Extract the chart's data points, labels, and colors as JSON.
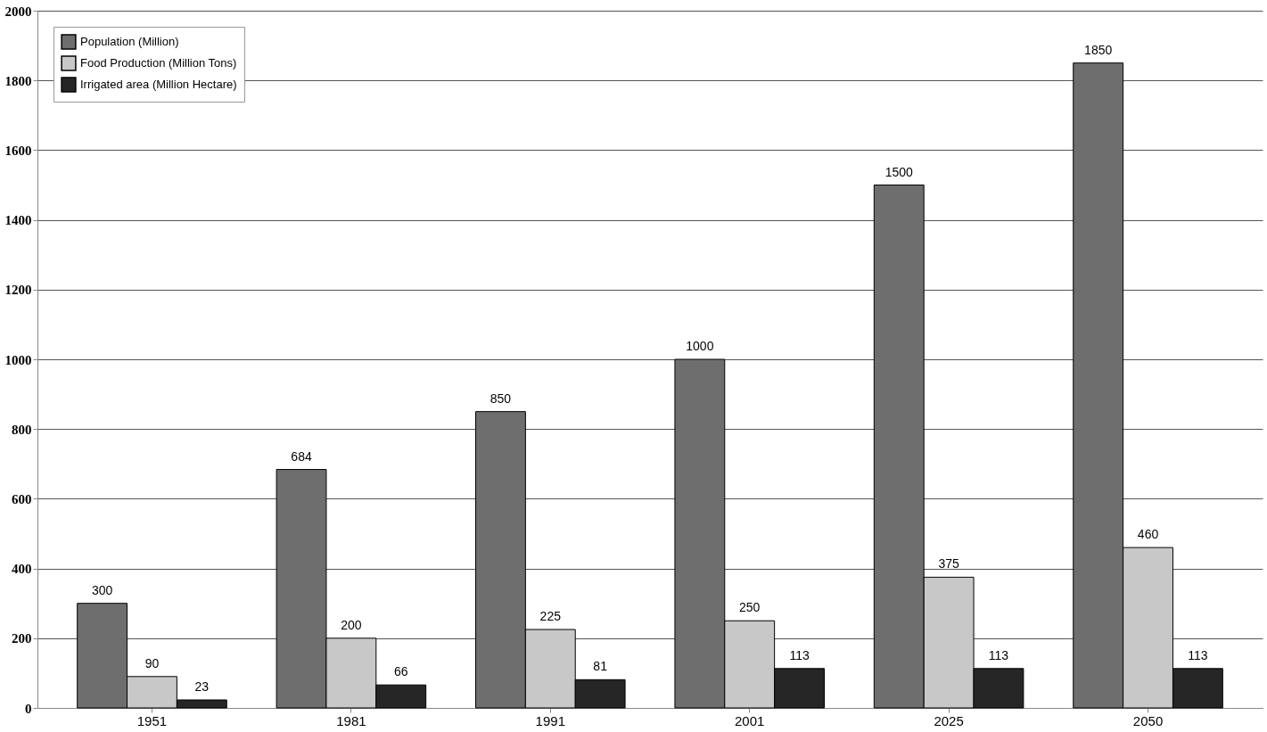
{
  "chart_data": {
    "type": "bar",
    "categories": [
      "1951",
      "1981",
      "1991",
      "2001",
      "2025",
      "2050"
    ],
    "series": [
      {
        "name": "Population (Million)",
        "color": "#6e6e6e",
        "values": [
          300,
          684,
          850,
          1000,
          1500,
          1850
        ]
      },
      {
        "name": "Food Production (Million Tons)",
        "color": "#c8c8c8",
        "values": [
          90,
          200,
          225,
          250,
          375,
          460
        ]
      },
      {
        "name": "Irrigated area (Million Hectare)",
        "color": "#262626",
        "values": [
          23,
          66,
          81,
          113,
          113,
          113
        ]
      }
    ],
    "ylim": [
      0,
      2000
    ],
    "yticks": [
      0,
      200,
      400,
      600,
      800,
      1000,
      1200,
      1400,
      1600,
      1800,
      2000
    ],
    "grid": "y",
    "legend": "top left",
    "data_labels": true
  }
}
